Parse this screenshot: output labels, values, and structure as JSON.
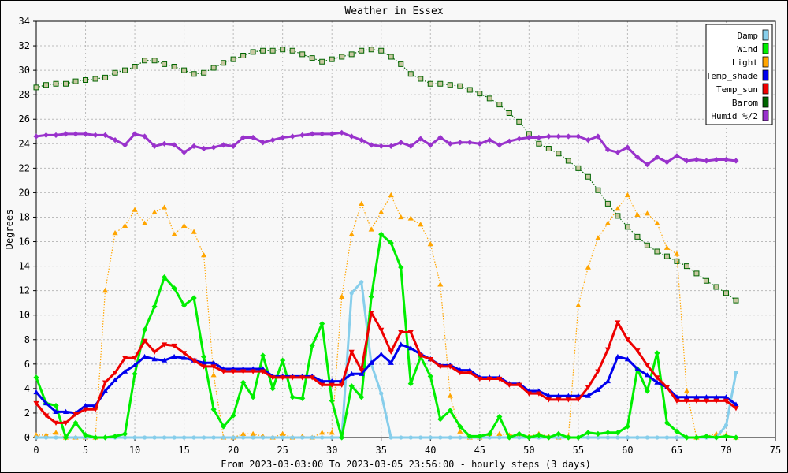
{
  "chart_data": {
    "type": "line",
    "title": "Weather in Essex",
    "xlabel": "From 2023-03-03:00 To 2023-03-05 23:56:00 - hourly steps (3 days)",
    "ylabel": "Degrees",
    "xlim": [
      0,
      75
    ],
    "ylim": [
      0,
      34
    ],
    "x_ticks": [
      0,
      5,
      10,
      15,
      20,
      25,
      30,
      35,
      40,
      45,
      50,
      55,
      60,
      65,
      70,
      75
    ],
    "y_ticks": [
      0,
      2,
      4,
      6,
      8,
      10,
      12,
      14,
      16,
      18,
      20,
      22,
      24,
      26,
      28,
      30,
      32,
      34
    ],
    "grid": true,
    "legend_position": "top-right",
    "x": [
      0,
      1,
      2,
      3,
      4,
      5,
      6,
      7,
      8,
      9,
      10,
      11,
      12,
      13,
      14,
      15,
      16,
      17,
      18,
      19,
      20,
      21,
      22,
      23,
      24,
      25,
      26,
      27,
      28,
      29,
      30,
      31,
      32,
      33,
      34,
      35,
      36,
      37,
      38,
      39,
      40,
      41,
      42,
      43,
      44,
      45,
      46,
      47,
      48,
      49,
      50,
      51,
      52,
      53,
      54,
      55,
      56,
      57,
      58,
      59,
      60,
      61,
      62,
      63,
      64,
      65,
      66,
      67,
      68,
      69,
      70,
      71
    ],
    "series": [
      {
        "name": "Damp",
        "color": "#87ceeb",
        "marker": "circle",
        "line": "solid",
        "values": [
          0,
          0,
          0,
          0,
          0,
          0,
          0,
          0,
          0,
          0,
          0,
          0,
          0,
          0,
          0,
          0,
          0,
          0,
          0,
          0,
          0,
          0,
          0,
          0,
          0,
          0,
          0,
          0,
          0,
          0,
          0,
          0,
          11.8,
          12.7,
          6,
          3.6,
          0,
          0,
          0,
          0,
          0,
          0,
          0,
          0,
          0,
          0,
          0,
          0,
          0,
          0,
          0,
          0,
          0,
          0,
          0,
          0,
          0,
          0,
          0,
          0,
          0,
          0,
          0,
          0,
          0,
          0,
          0,
          0,
          0,
          0,
          1,
          5.3
        ]
      },
      {
        "name": "Wind",
        "color": "#00ee00",
        "marker": "diamond",
        "line": "solid",
        "values": [
          4.9,
          2.8,
          2.6,
          0,
          1.2,
          0.2,
          0,
          0,
          0.1,
          0.3,
          5.2,
          8.8,
          10.7,
          13.1,
          12.2,
          10.8,
          11.4,
          6.6,
          2.3,
          0.9,
          1.8,
          4.5,
          3.3,
          6.7,
          4,
          6.3,
          3.3,
          3.2,
          7.5,
          9.3,
          3,
          0,
          4.2,
          3.3,
          11.5,
          16.6,
          15.9,
          13.9,
          4.4,
          6.6,
          5,
          1.5,
          2.2,
          0.9,
          0.1,
          0.1,
          0.3,
          1.7,
          0,
          0.3,
          0,
          0.2,
          0,
          0.3,
          0,
          0,
          0.4,
          0.3,
          0.4,
          0.4,
          0.9,
          5.6,
          3.8,
          6.9,
          1.2,
          0.5,
          0,
          0,
          0.1,
          0,
          0.1,
          0
        ]
      },
      {
        "name": "Light",
        "color": "#ffa500",
        "marker": "triangle-up",
        "line": "dotted",
        "values": [
          0.2,
          0.2,
          0.4,
          0,
          0,
          0,
          0,
          12,
          16.7,
          17.3,
          18.6,
          17.5,
          18.4,
          18.8,
          16.6,
          17.3,
          16.8,
          14.9,
          5.1,
          0,
          0,
          0.3,
          0.3,
          0.1,
          0,
          0.3,
          0,
          0.1,
          0,
          0.4,
          0.4,
          11.5,
          16.6,
          19.1,
          17,
          18.4,
          19.8,
          18,
          17.9,
          17.4,
          15.8,
          12.5,
          3.4,
          0.5,
          0,
          0,
          0.3,
          0.3,
          0.2,
          0.2,
          0.1,
          0.3,
          0.1,
          0,
          0.1,
          10.8,
          13.9,
          16.3,
          17.5,
          18.7,
          19.8,
          18.2,
          18.3,
          17.5,
          15.5,
          15,
          3.8,
          0,
          0.1,
          0.3,
          0.2,
          0
        ]
      },
      {
        "name": "Temp_shade",
        "color": "#0000ee",
        "marker": "triangle-up",
        "line": "solid",
        "values": [
          3.7,
          2.8,
          2.1,
          2.1,
          2,
          2.6,
          2.6,
          3.8,
          4.7,
          5.4,
          5.9,
          6.6,
          6.4,
          6.3,
          6.6,
          6.5,
          6.3,
          6.1,
          6.1,
          5.6,
          5.6,
          5.6,
          5.6,
          5.6,
          5,
          5,
          5,
          5,
          5,
          4.6,
          4.6,
          4.6,
          5.2,
          5.2,
          6.1,
          6.8,
          6.1,
          7.6,
          7.3,
          6.8,
          6.4,
          5.9,
          5.9,
          5.5,
          5.5,
          4.9,
          4.9,
          4.9,
          4.4,
          4.4,
          3.8,
          3.8,
          3.4,
          3.4,
          3.4,
          3.4,
          3.4,
          3.9,
          4.6,
          6.6,
          6.4,
          5.6,
          5.1,
          4.5,
          4.1,
          3.3,
          3.3,
          3.3,
          3.3,
          3.3,
          3.3,
          2.7
        ]
      },
      {
        "name": "Temp_sun",
        "color": "#ee0000",
        "marker": "triangle-down",
        "line": "solid",
        "values": [
          2.8,
          1.8,
          1.2,
          1.2,
          1.9,
          2.3,
          2.3,
          4.5,
          5.3,
          6.5,
          6.5,
          7.9,
          7,
          7.6,
          7.5,
          6.9,
          6.3,
          5.8,
          5.8,
          5.4,
          5.4,
          5.4,
          5.4,
          5.4,
          4.9,
          4.9,
          4.9,
          4.9,
          4.9,
          4.3,
          4.3,
          4.3,
          7,
          5.5,
          10.2,
          8.8,
          7,
          8.6,
          8.6,
          6.7,
          6.4,
          5.8,
          5.8,
          5.3,
          5.3,
          4.8,
          4.8,
          4.8,
          4.3,
          4.3,
          3.6,
          3.6,
          3.1,
          3.1,
          3.1,
          3.1,
          4.1,
          5.4,
          7.2,
          9.4,
          8,
          7.1,
          5.9,
          4.9,
          4.1,
          3,
          3,
          3,
          3,
          3,
          3,
          2.4
        ]
      },
      {
        "name": "Barom",
        "color": "#006400",
        "marker": "square",
        "line": "dotted",
        "values": [
          28.6,
          28.8,
          28.9,
          28.9,
          29.1,
          29.2,
          29.3,
          29.4,
          29.8,
          30,
          30.3,
          30.8,
          30.8,
          30.5,
          30.3,
          30,
          29.7,
          29.8,
          30.2,
          30.6,
          30.9,
          31.2,
          31.5,
          31.6,
          31.6,
          31.7,
          31.6,
          31.3,
          31,
          30.7,
          30.9,
          31.1,
          31.3,
          31.6,
          31.7,
          31.6,
          31.1,
          30.5,
          29.7,
          29.3,
          28.9,
          28.9,
          28.8,
          28.7,
          28.4,
          28.1,
          27.7,
          27.2,
          26.5,
          25.8,
          24.8,
          24,
          23.6,
          23.2,
          22.6,
          22,
          21.3,
          20.2,
          19.1,
          18.1,
          17.2,
          16.4,
          15.7,
          15.2,
          14.8,
          14.4,
          14,
          13.4,
          12.8,
          12.3,
          11.8,
          11.2
        ]
      },
      {
        "name": "Humid_%/2",
        "color": "#9932cc",
        "marker": "diamond",
        "line": "solid",
        "values": [
          24.6,
          24.7,
          24.7,
          24.8,
          24.8,
          24.8,
          24.7,
          24.7,
          24.3,
          23.9,
          24.8,
          24.6,
          23.8,
          24,
          23.9,
          23.3,
          23.8,
          23.6,
          23.7,
          23.9,
          23.8,
          24.5,
          24.5,
          24.1,
          24.3,
          24.5,
          24.6,
          24.7,
          24.8,
          24.8,
          24.8,
          24.9,
          24.6,
          24.3,
          23.9,
          23.8,
          23.8,
          24.1,
          23.8,
          24.4,
          23.9,
          24.5,
          24,
          24.1,
          24.1,
          24,
          24.3,
          23.9,
          24.2,
          24.4,
          24.5,
          24.5,
          24.6,
          24.6,
          24.6,
          24.6,
          24.3,
          24.6,
          23.5,
          23.3,
          23.7,
          22.9,
          22.3,
          22.9,
          22.5,
          23,
          22.6,
          22.7,
          22.6,
          22.7,
          22.7,
          22.6
        ]
      }
    ]
  }
}
